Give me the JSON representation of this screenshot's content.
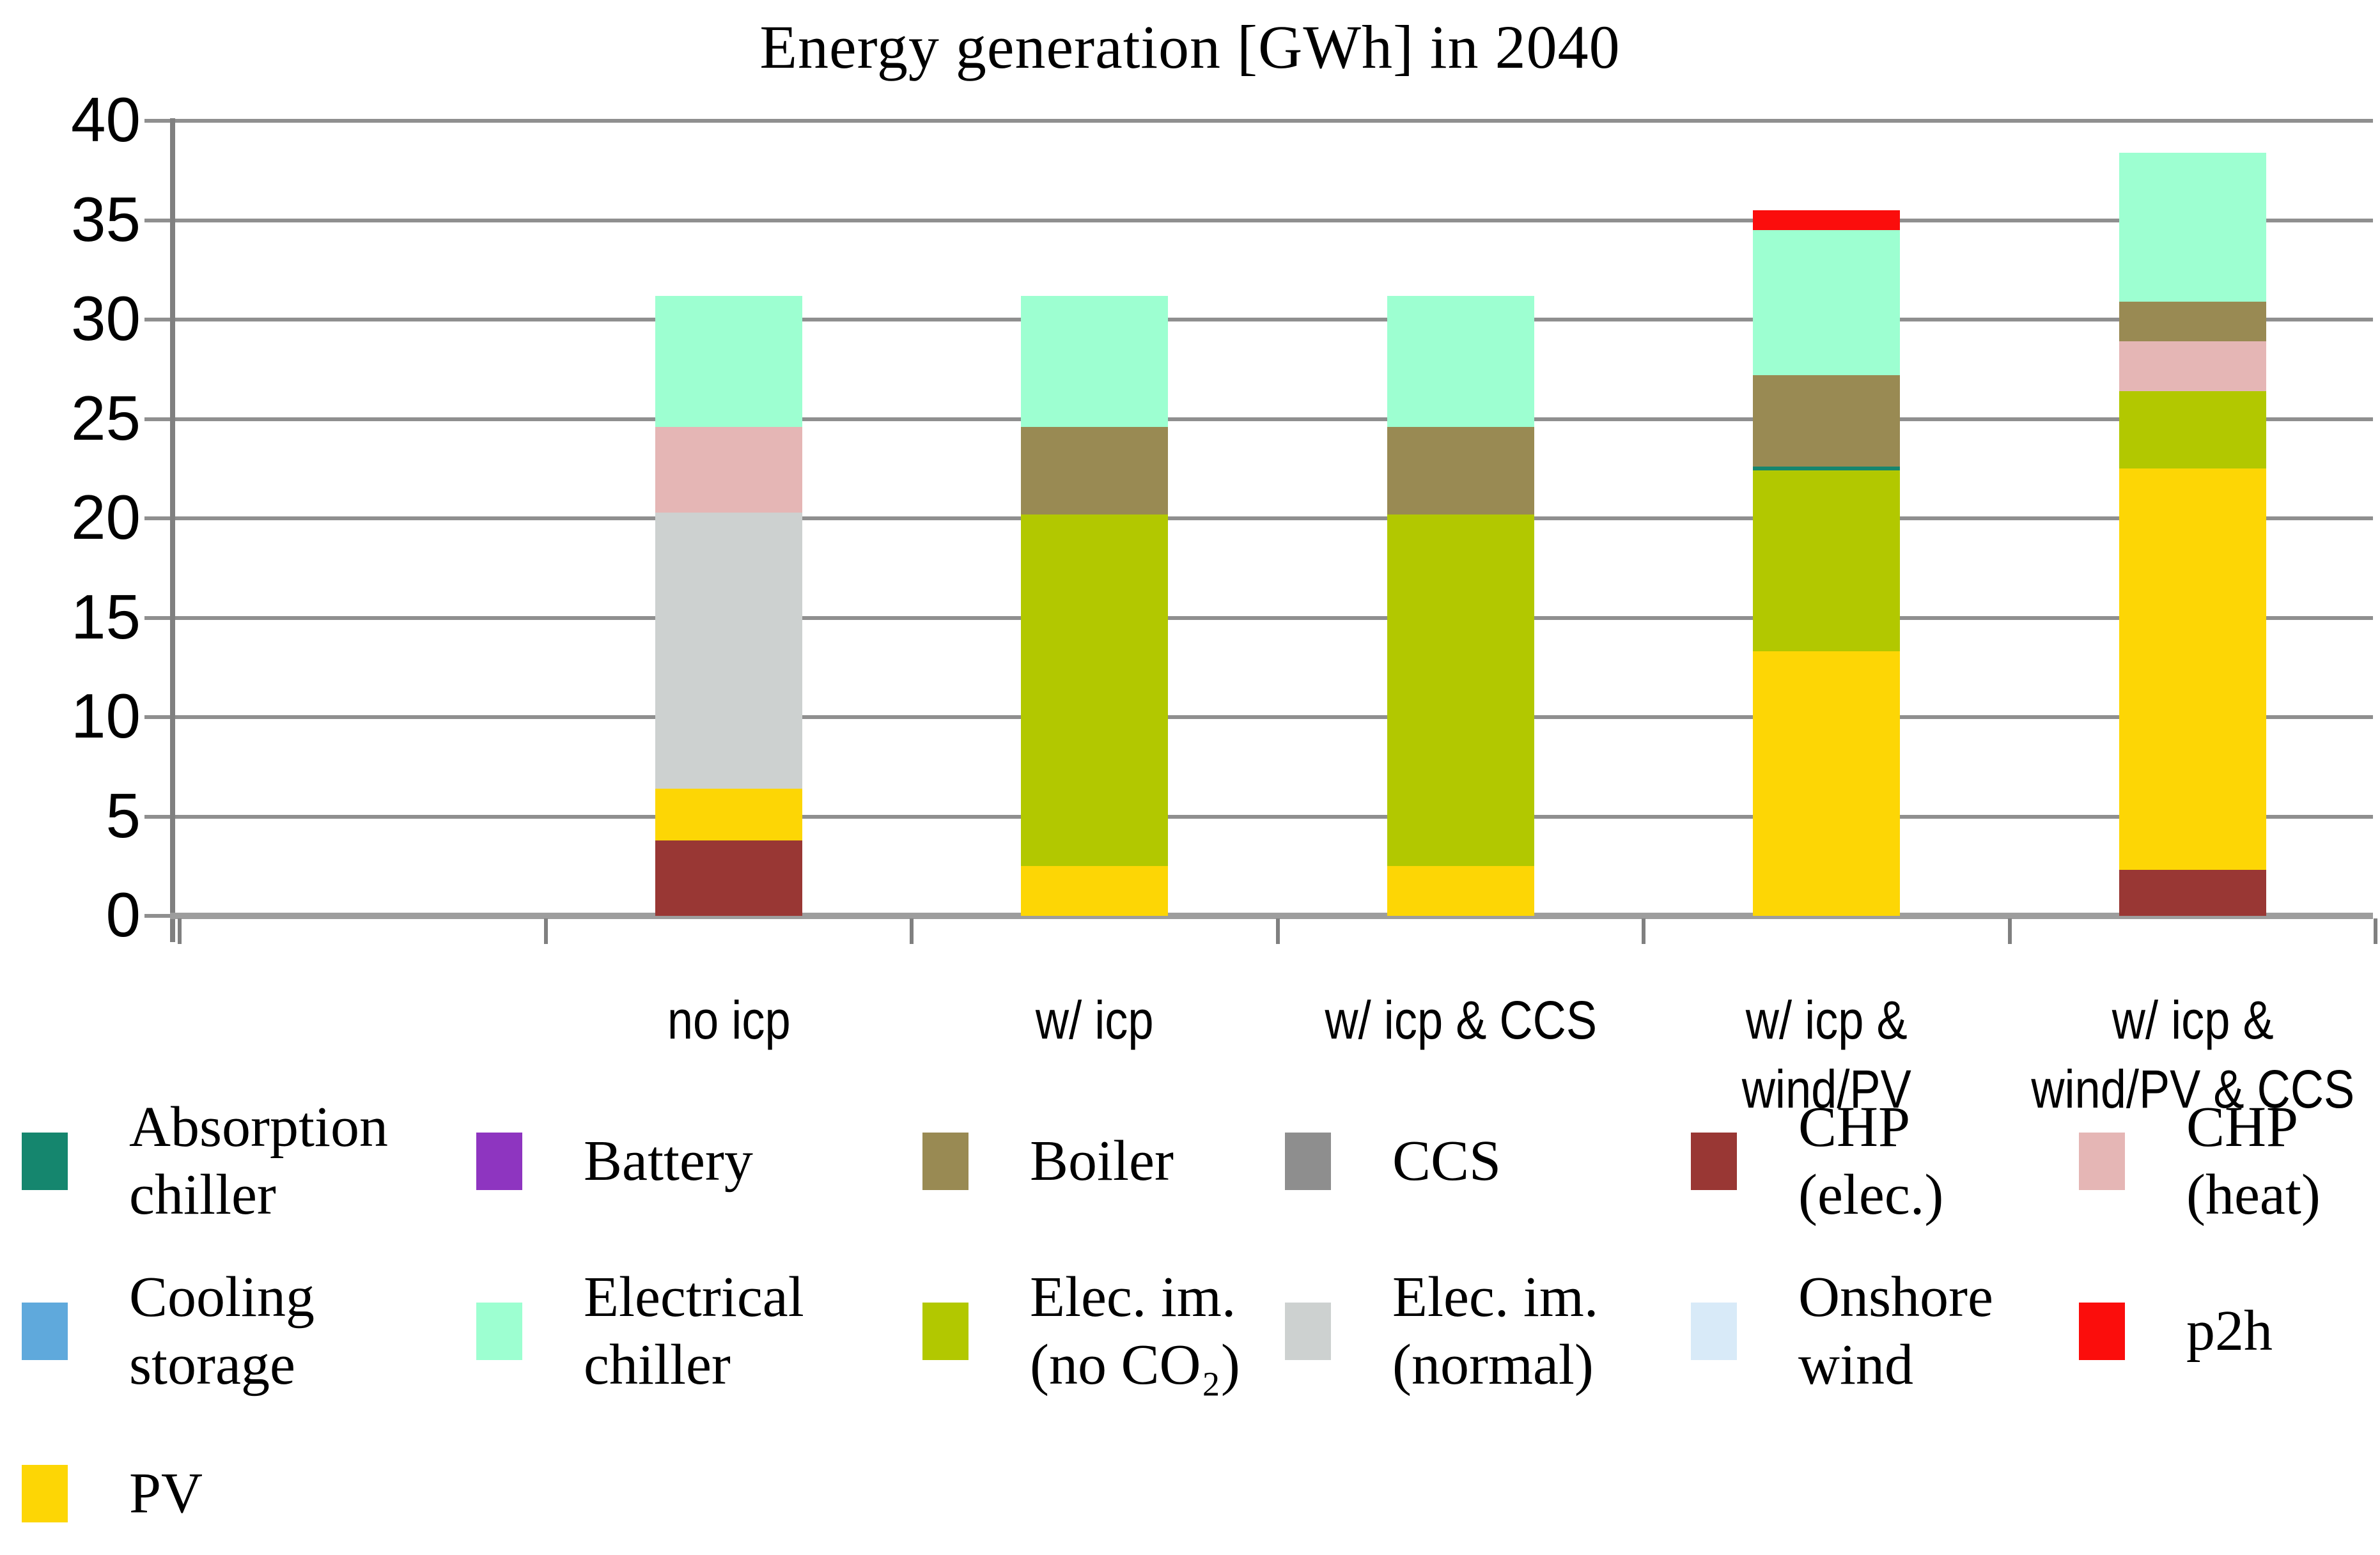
{
  "title": "Energy generation [GWh] in 2040",
  "axes": {
    "y_ticks": [
      40,
      35,
      30,
      25,
      20,
      15,
      10,
      5,
      0
    ],
    "y_min": 0,
    "y_max": 40
  },
  "chart_data": {
    "type": "bar",
    "stacked": true,
    "title": "Energy generation [GWh] in 2040",
    "unit": "GWh",
    "ylim": [
      0,
      40
    ],
    "grid": true,
    "legend_position": "bottom",
    "categories": [
      "no icp",
      "w/ icp",
      "w/ icp & CCS",
      "w/ icp & wind/PV",
      "w/ icp & wind/PV & CCS"
    ],
    "category_label_lines": [
      [
        "no icp"
      ],
      [
        "w/ icp"
      ],
      [
        "w/ icp & CCS"
      ],
      [
        "w/ icp &",
        "wind/PV"
      ],
      [
        "w/ icp &",
        "wind/PV & CCS"
      ]
    ],
    "series": [
      {
        "name": "CHP (elec.)",
        "color": "#993734",
        "values": [
          3.8,
          0,
          0,
          0,
          2.3
        ]
      },
      {
        "name": "PV",
        "color": "#fdd605",
        "values": [
          2.6,
          2.5,
          2.5,
          13.3,
          20.2
        ]
      },
      {
        "name": "Elec. im. (no CO₂)",
        "color": "#b2c800",
        "values": [
          0,
          17.7,
          17.7,
          9.1,
          3.9
        ]
      },
      {
        "name": "Elec. im. (normal)",
        "color": "#cdd1d0",
        "values": [
          13.9,
          0,
          0,
          0,
          0
        ]
      },
      {
        "name": "Absorption chiller",
        "color": "#15866e",
        "values": [
          0,
          0,
          0,
          0.2,
          0
        ]
      },
      {
        "name": "CHP (heat)",
        "color": "#e5b6b5",
        "values": [
          4.3,
          0,
          0,
          0,
          2.5
        ]
      },
      {
        "name": "Boiler",
        "color": "#998a53",
        "values": [
          0,
          4.4,
          4.4,
          4.6,
          2.0
        ]
      },
      {
        "name": "Electrical chiller",
        "color": "#9dffd1",
        "values": [
          6.6,
          6.6,
          6.6,
          7.3,
          7.5
        ]
      },
      {
        "name": "p2h",
        "color": "#fb0d0c",
        "values": [
          0,
          0,
          0,
          1.0,
          0
        ]
      },
      {
        "name": "Battery",
        "color": "#8e35c0",
        "values": [
          0,
          0,
          0,
          0,
          0
        ]
      },
      {
        "name": "CCS",
        "color": "#8e8e8e",
        "values": [
          0,
          0,
          0,
          0,
          0
        ]
      },
      {
        "name": "Cooling storage",
        "color": "#5fa9dc",
        "values": [
          0,
          0,
          0,
          0,
          0
        ]
      },
      {
        "name": "Onshore wind",
        "color": "#d8eaf8",
        "values": [
          0,
          0,
          0,
          0,
          0
        ]
      }
    ],
    "totals": [
      31.2,
      31.2,
      31.2,
      35.5,
      38.4
    ]
  },
  "legend": {
    "rows": [
      [
        {
          "series": "Absorption chiller",
          "lines": [
            "Absorption",
            "chiller"
          ]
        },
        {
          "series": "Battery",
          "lines": [
            "Battery"
          ]
        },
        {
          "series": "Boiler",
          "lines": [
            "Boiler"
          ]
        },
        {
          "series": "CCS",
          "lines": [
            "CCS"
          ]
        },
        {
          "series": "CHP (elec.)",
          "lines": [
            "CHP",
            "(elec.)"
          ]
        },
        {
          "series": "CHP (heat)",
          "lines": [
            "CHP",
            "(heat)"
          ]
        }
      ],
      [
        {
          "series": "Cooling storage",
          "lines": [
            "Cooling",
            "storage"
          ]
        },
        {
          "series": "Electrical chiller",
          "lines": [
            "Electrical",
            "chiller"
          ]
        },
        {
          "series": "Elec. im. (no CO₂)",
          "lines": [
            "Elec. im.",
            "(no CO₂)"
          ]
        },
        {
          "series": "Elec. im. (normal)",
          "lines": [
            "Elec. im.",
            "(normal)"
          ]
        },
        {
          "series": "Onshore wind",
          "lines": [
            "Onshore",
            "wind"
          ]
        },
        {
          "series": "p2h",
          "lines": [
            "p2h"
          ]
        }
      ],
      [
        {
          "series": "PV",
          "lines": [
            "PV"
          ]
        }
      ]
    ]
  }
}
